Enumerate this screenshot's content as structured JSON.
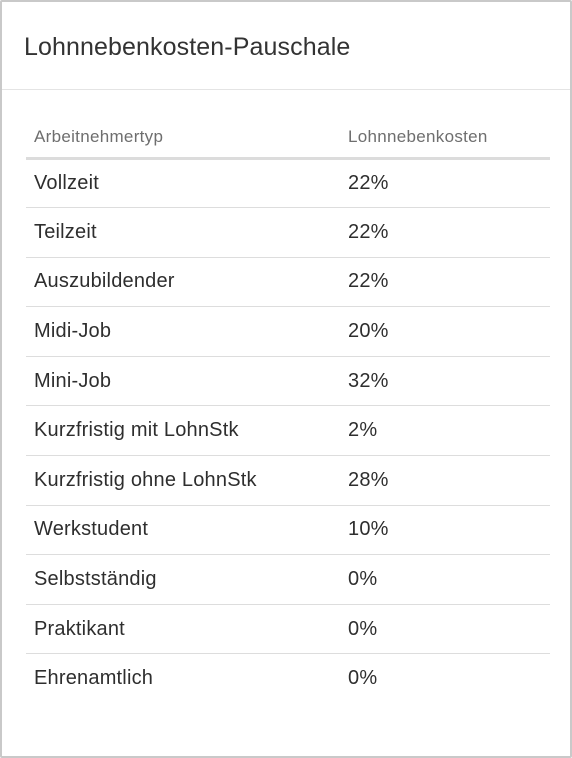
{
  "panel": {
    "title": "Lohnnebenkosten-Pauschale"
  },
  "table": {
    "headers": {
      "employee_type": "Arbeitnehmertyp",
      "costs": "Lohnnebenkosten"
    },
    "rows": [
      {
        "type": "Vollzeit",
        "value": "22%"
      },
      {
        "type": "Teilzeit",
        "value": "22%"
      },
      {
        "type": "Auszubildender",
        "value": "22%"
      },
      {
        "type": "Midi-Job",
        "value": "20%"
      },
      {
        "type": "Mini-Job",
        "value": "32%"
      },
      {
        "type": "Kurzfristig mit LohnStk",
        "value": "2%"
      },
      {
        "type": "Kurzfristig ohne LohnStk",
        "value": "28%"
      },
      {
        "type": "Werkstudent",
        "value": "10%"
      },
      {
        "type": "Selbstständig",
        "value": "0%"
      },
      {
        "type": "Praktikant",
        "value": "0%"
      },
      {
        "type": "Ehrenamtlich",
        "value": "0%"
      }
    ]
  }
}
